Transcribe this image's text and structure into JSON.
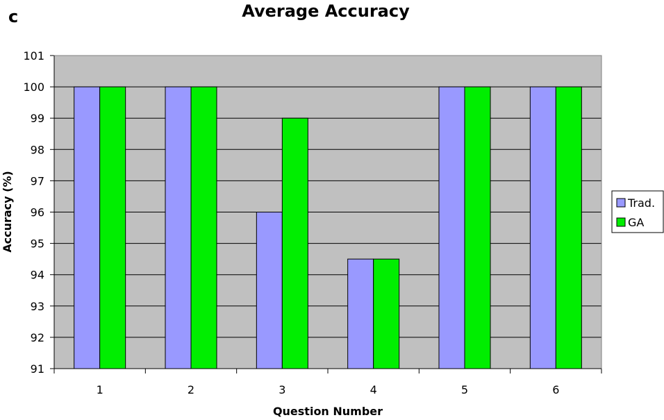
{
  "panel_label": "c",
  "chart_data": {
    "type": "bar",
    "title": "Average Accuracy",
    "xlabel": "Question Number",
    "ylabel": "Accuracy (%)",
    "categories": [
      "1",
      "2",
      "3",
      "4",
      "5",
      "6"
    ],
    "series": [
      {
        "name": "Trad.",
        "color": "#9999ff",
        "values": [
          100,
          100,
          96,
          94.5,
          100,
          100
        ]
      },
      {
        "name": "GA",
        "color": "#00ee00",
        "values": [
          100,
          100,
          99,
          94.5,
          100,
          100
        ]
      }
    ],
    "ylim": [
      91,
      101
    ],
    "yticks": [
      91,
      92,
      93,
      94,
      95,
      96,
      97,
      98,
      99,
      100,
      101
    ],
    "grid": true,
    "plot_background": "#c0c0c0",
    "legend_position": "right"
  }
}
